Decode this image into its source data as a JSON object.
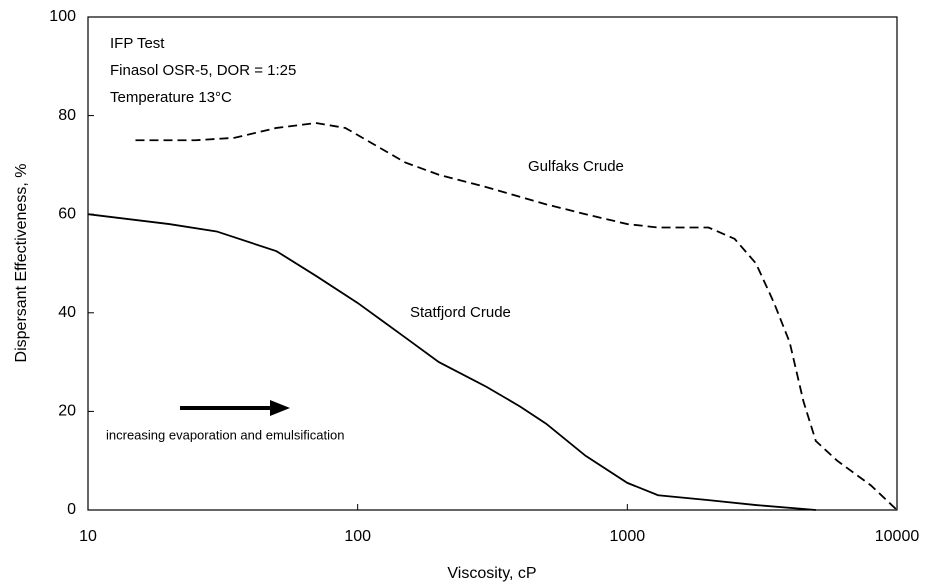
{
  "chart_data": {
    "type": "line",
    "xlabel": "Viscosity, cP",
    "ylabel": "Dispersant Effectiveness, %",
    "annotations": [
      "IFP Test",
      "Finasol OSR-5, DOR = 1:25",
      "Temperature 13°C",
      "increasing evaporation and emulsification"
    ],
    "xscale": "log",
    "xlim": [
      10,
      10000
    ],
    "xticks": [
      10,
      100,
      1000,
      10000
    ],
    "ylim": [
      0,
      100
    ],
    "yticks": [
      0,
      20,
      40,
      60,
      80,
      100
    ],
    "series": [
      {
        "name": "Gulfaks Crude",
        "color": "#000000",
        "dashed": true,
        "x": [
          15,
          25,
          35,
          50,
          70,
          90,
          150,
          200,
          300,
          500,
          700,
          1000,
          1300,
          2000,
          2500,
          3000,
          3500,
          4000,
          4500,
          5000,
          6000,
          8000,
          10000
        ],
        "values": [
          75,
          75,
          75.5,
          77.5,
          78.5,
          77.5,
          70.5,
          68,
          65.5,
          62,
          60,
          58,
          57.3,
          57.3,
          55,
          50,
          42,
          34,
          22,
          14,
          10,
          5,
          0
        ]
      },
      {
        "name": "Statfjord Crude",
        "color": "#000000",
        "dashed": false,
        "x": [
          10,
          20,
          30,
          50,
          70,
          100,
          150,
          200,
          300,
          400,
          500,
          700,
          1000,
          1300,
          2000,
          3000,
          5000
        ],
        "values": [
          60,
          58,
          56.5,
          52.5,
          47.5,
          42,
          35,
          30,
          25,
          21,
          17.5,
          11,
          5.5,
          3,
          2,
          1,
          0
        ]
      }
    ]
  }
}
